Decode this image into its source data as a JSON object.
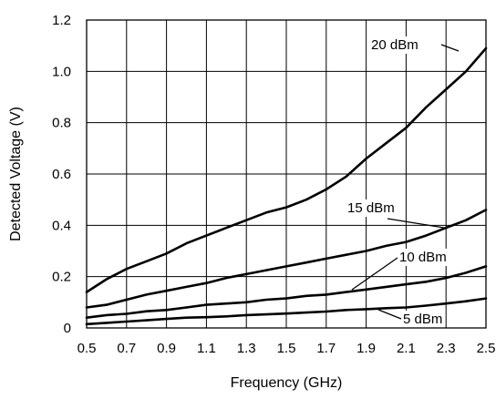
{
  "chart_data": {
    "type": "line",
    "title": "",
    "xlabel": "Frequency (GHz)",
    "ylabel": "Detected Voltage (V)",
    "xlim": [
      0.5,
      2.5
    ],
    "ylim": [
      0,
      1.2
    ],
    "grid": true,
    "legend": "inline labels",
    "x_ticks": [
      "0.5",
      "0.7",
      "0.9",
      "1.1",
      "1.3",
      "1.5",
      "1.7",
      "1.9",
      "2.1",
      "2.3",
      "2.5"
    ],
    "x_tick_values": [
      0.5,
      0.7,
      0.9,
      1.1,
      1.3,
      1.5,
      1.7,
      1.9,
      2.1,
      2.3,
      2.5
    ],
    "y_ticks": [
      "0",
      "0.2",
      "0.4",
      "0.6",
      "0.8",
      "1.0",
      "1.2"
    ],
    "y_tick_values": [
      0,
      0.2,
      0.4,
      0.6,
      0.8,
      1.0,
      1.2
    ],
    "series": [
      {
        "name": "20 dBm",
        "x": [
          0.5,
          0.6,
          0.7,
          0.8,
          0.9,
          1.0,
          1.1,
          1.2,
          1.3,
          1.4,
          1.5,
          1.6,
          1.7,
          1.8,
          1.9,
          2.0,
          2.1,
          2.2,
          2.3,
          2.4,
          2.5
        ],
        "values": [
          0.14,
          0.19,
          0.23,
          0.26,
          0.29,
          0.33,
          0.36,
          0.39,
          0.42,
          0.45,
          0.47,
          0.5,
          0.54,
          0.59,
          0.66,
          0.72,
          0.78,
          0.86,
          0.93,
          1.0,
          1.09
        ]
      },
      {
        "name": "15 dBm",
        "x": [
          0.5,
          0.6,
          0.7,
          0.8,
          0.9,
          1.0,
          1.1,
          1.2,
          1.3,
          1.4,
          1.5,
          1.6,
          1.7,
          1.8,
          1.9,
          2.0,
          2.1,
          2.2,
          2.3,
          2.4,
          2.5
        ],
        "values": [
          0.08,
          0.09,
          0.11,
          0.13,
          0.145,
          0.16,
          0.175,
          0.195,
          0.21,
          0.225,
          0.24,
          0.255,
          0.27,
          0.285,
          0.3,
          0.32,
          0.335,
          0.36,
          0.39,
          0.42,
          0.46
        ]
      },
      {
        "name": "10 dBm",
        "x": [
          0.5,
          0.6,
          0.7,
          0.8,
          0.9,
          1.0,
          1.1,
          1.2,
          1.3,
          1.4,
          1.5,
          1.6,
          1.7,
          1.8,
          1.9,
          2.0,
          2.1,
          2.2,
          2.3,
          2.4,
          2.5
        ],
        "values": [
          0.04,
          0.05,
          0.055,
          0.065,
          0.07,
          0.08,
          0.09,
          0.095,
          0.1,
          0.11,
          0.115,
          0.125,
          0.13,
          0.14,
          0.15,
          0.16,
          0.17,
          0.18,
          0.195,
          0.215,
          0.24
        ]
      },
      {
        "name": "5 dBm",
        "x": [
          0.5,
          0.6,
          0.7,
          0.8,
          0.9,
          1.0,
          1.1,
          1.2,
          1.3,
          1.4,
          1.5,
          1.6,
          1.7,
          1.8,
          1.9,
          2.0,
          2.1,
          2.2,
          2.3,
          2.4,
          2.5
        ],
        "values": [
          0.015,
          0.02,
          0.025,
          0.03,
          0.035,
          0.04,
          0.042,
          0.045,
          0.05,
          0.053,
          0.056,
          0.06,
          0.064,
          0.07,
          0.073,
          0.077,
          0.08,
          0.087,
          0.095,
          0.104,
          0.115
        ]
      }
    ]
  }
}
